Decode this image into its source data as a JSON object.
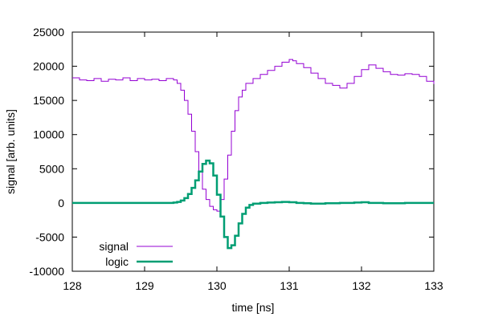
{
  "chart_data": {
    "type": "line",
    "step": true,
    "title": "",
    "xlabel": "time [ns]",
    "ylabel": "signal [arb. units]",
    "xlim": [
      128,
      133
    ],
    "ylim": [
      -10000,
      25000
    ],
    "xticks": [
      128,
      129,
      130,
      131,
      132,
      133
    ],
    "yticks": [
      -10000,
      -5000,
      0,
      5000,
      10000,
      15000,
      20000,
      25000
    ],
    "legend_position": "bottom-left",
    "series": [
      {
        "name": "signal",
        "color": "#9400d3",
        "line_weight": "thin",
        "points": [
          [
            128.0,
            18300
          ],
          [
            128.1,
            18000
          ],
          [
            128.2,
            17900
          ],
          [
            128.3,
            18200
          ],
          [
            128.4,
            17800
          ],
          [
            128.5,
            18100
          ],
          [
            128.6,
            18000
          ],
          [
            128.7,
            18300
          ],
          [
            128.8,
            17900
          ],
          [
            128.9,
            18200
          ],
          [
            129.0,
            18000
          ],
          [
            129.1,
            18100
          ],
          [
            129.2,
            17900
          ],
          [
            129.3,
            18200
          ],
          [
            129.4,
            18000
          ],
          [
            129.45,
            17500
          ],
          [
            129.5,
            16500
          ],
          [
            129.55,
            15000
          ],
          [
            129.6,
            13000
          ],
          [
            129.65,
            10500
          ],
          [
            129.7,
            7500
          ],
          [
            129.75,
            4500
          ],
          [
            129.8,
            2000
          ],
          [
            129.85,
            500
          ],
          [
            129.9,
            -500
          ],
          [
            129.95,
            -1000
          ],
          [
            130.0,
            -1200
          ],
          [
            130.05,
            500
          ],
          [
            130.1,
            3500
          ],
          [
            130.15,
            7000
          ],
          [
            130.2,
            10500
          ],
          [
            130.25,
            13500
          ],
          [
            130.3,
            15500
          ],
          [
            130.35,
            16500
          ],
          [
            130.4,
            17500
          ],
          [
            130.5,
            18200
          ],
          [
            130.6,
            18800
          ],
          [
            130.7,
            19400
          ],
          [
            130.8,
            20000
          ],
          [
            130.9,
            20600
          ],
          [
            131.0,
            21000
          ],
          [
            131.05,
            20800
          ],
          [
            131.1,
            20400
          ],
          [
            131.2,
            19800
          ],
          [
            131.3,
            19000
          ],
          [
            131.4,
            18200
          ],
          [
            131.5,
            17500
          ],
          [
            131.6,
            17200
          ],
          [
            131.7,
            16800
          ],
          [
            131.8,
            17500
          ],
          [
            131.9,
            18500
          ],
          [
            132.0,
            19500
          ],
          [
            132.1,
            20200
          ],
          [
            132.2,
            19700
          ],
          [
            132.3,
            19200
          ],
          [
            132.4,
            18800
          ],
          [
            132.5,
            18700
          ],
          [
            132.6,
            18900
          ],
          [
            132.7,
            18800
          ],
          [
            132.8,
            18500
          ],
          [
            132.9,
            17800
          ],
          [
            133.0,
            17400
          ]
        ]
      },
      {
        "name": "logic",
        "color": "#009e73",
        "line_weight": "thick",
        "points": [
          [
            128.0,
            0
          ],
          [
            128.5,
            0
          ],
          [
            129.0,
            0
          ],
          [
            129.3,
            0
          ],
          [
            129.4,
            50
          ],
          [
            129.45,
            150
          ],
          [
            129.5,
            350
          ],
          [
            129.55,
            700
          ],
          [
            129.6,
            1300
          ],
          [
            129.65,
            2200
          ],
          [
            129.7,
            3300
          ],
          [
            129.75,
            4600
          ],
          [
            129.8,
            5700
          ],
          [
            129.85,
            6200
          ],
          [
            129.9,
            5800
          ],
          [
            129.95,
            4000
          ],
          [
            130.0,
            1200
          ],
          [
            130.05,
            -2000
          ],
          [
            130.1,
            -5000
          ],
          [
            130.15,
            -6600
          ],
          [
            130.2,
            -6200
          ],
          [
            130.25,
            -4800
          ],
          [
            130.3,
            -3000
          ],
          [
            130.35,
            -1600
          ],
          [
            130.4,
            -700
          ],
          [
            130.45,
            -300
          ],
          [
            130.5,
            -100
          ],
          [
            130.6,
            0
          ],
          [
            130.7,
            50
          ],
          [
            130.8,
            100
          ],
          [
            130.9,
            150
          ],
          [
            131.0,
            100
          ],
          [
            131.1,
            0
          ],
          [
            131.2,
            -50
          ],
          [
            131.3,
            -100
          ],
          [
            131.5,
            -50
          ],
          [
            131.7,
            0
          ],
          [
            131.9,
            50
          ],
          [
            132.0,
            100
          ],
          [
            132.1,
            0
          ],
          [
            132.3,
            -50
          ],
          [
            132.6,
            0
          ],
          [
            133.0,
            0
          ]
        ]
      }
    ]
  }
}
